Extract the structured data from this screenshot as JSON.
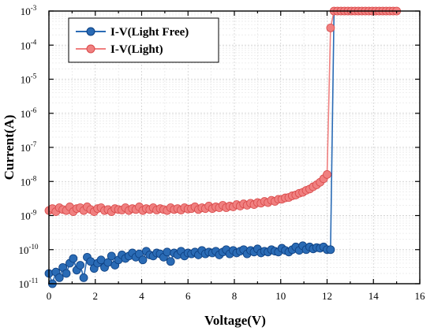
{
  "chart_data": {
    "type": "line",
    "title": "",
    "xlabel": "Voltage(V)",
    "ylabel": "Current(A)",
    "xlim": [
      0,
      16
    ],
    "ylim": [
      1e-11,
      0.001
    ],
    "yscale": "log",
    "grid": true,
    "legend_position": "top-left",
    "x_ticks": [
      "0",
      "2",
      "4",
      "6",
      "8",
      "10",
      "12",
      "14",
      "16"
    ],
    "y_ticks": [
      {
        "base": "10",
        "exp": "-11",
        "value": 1e-11
      },
      {
        "base": "10",
        "exp": "-10",
        "value": 1e-10
      },
      {
        "base": "10",
        "exp": "-9",
        "value": 1e-09
      },
      {
        "base": "10",
        "exp": "-8",
        "value": 1e-08
      },
      {
        "base": "10",
        "exp": "-7",
        "value": 1e-07
      },
      {
        "base": "10",
        "exp": "-6",
        "value": 1e-06
      },
      {
        "base": "10",
        "exp": "-5",
        "value": 1e-05
      },
      {
        "base": "10",
        "exp": "-4",
        "value": 0.0001
      },
      {
        "base": "10",
        "exp": "-3",
        "value": 0.001
      }
    ],
    "series": [
      {
        "name": "I-V(Light Free)",
        "color": "#2a6bb5",
        "edge_color": "#0d3f80",
        "x": [
          0.0,
          0.15,
          0.3,
          0.45,
          0.6,
          0.75,
          0.9,
          1.05,
          1.2,
          1.35,
          1.5,
          1.65,
          1.8,
          1.95,
          2.1,
          2.25,
          2.4,
          2.55,
          2.7,
          2.85,
          3.0,
          3.15,
          3.3,
          3.45,
          3.6,
          3.75,
          3.9,
          4.05,
          4.2,
          4.35,
          4.5,
          4.65,
          4.8,
          4.95,
          5.1,
          5.25,
          5.4,
          5.55,
          5.7,
          5.85,
          6.0,
          6.15,
          6.3,
          6.45,
          6.6,
          6.75,
          6.9,
          7.05,
          7.2,
          7.35,
          7.5,
          7.65,
          7.8,
          7.95,
          8.1,
          8.25,
          8.4,
          8.55,
          8.7,
          8.85,
          9.0,
          9.15,
          9.3,
          9.45,
          9.6,
          9.75,
          9.9,
          10.05,
          10.2,
          10.35,
          10.5,
          10.65,
          10.8,
          10.95,
          11.1,
          11.25,
          11.4,
          11.55,
          11.7,
          11.85,
          12.0,
          12.15,
          12.3,
          12.45,
          12.6,
          12.75,
          12.9,
          13.05,
          13.2,
          13.35,
          13.5,
          13.65,
          13.8,
          13.95,
          14.1,
          14.25,
          14.4,
          14.55,
          14.7,
          14.85,
          15.0
        ],
        "y": [
          2e-11,
          1e-11,
          2.2e-11,
          1.5e-11,
          3e-11,
          2e-11,
          4e-11,
          5.5e-11,
          2.5e-11,
          3.5e-11,
          1.5e-11,
          6e-11,
          4.5e-11,
          2.8e-11,
          4e-11,
          5e-11,
          3e-11,
          4.2e-11,
          6.5e-11,
          3.5e-11,
          5e-11,
          7e-11,
          5.5e-11,
          6.5e-11,
          8e-11,
          6e-11,
          7.5e-11,
          5e-11,
          9e-11,
          7e-11,
          6.5e-11,
          8e-11,
          7.5e-11,
          6e-11,
          8.5e-11,
          4.5e-11,
          8e-11,
          7e-11,
          9e-11,
          6.5e-11,
          8e-11,
          7.5e-11,
          8.5e-11,
          7e-11,
          9.5e-11,
          7.5e-11,
          8.5e-11,
          8e-11,
          9e-11,
          7e-11,
          8.5e-11,
          1e-10,
          7.5e-11,
          9.5e-11,
          8e-11,
          9e-11,
          1e-10,
          7.5e-11,
          9.5e-11,
          8.5e-11,
          1.05e-10,
          8e-11,
          9e-11,
          8.5e-11,
          1e-10,
          9e-11,
          8.5e-11,
          1.1e-10,
          9.5e-11,
          8.5e-11,
          1e-10,
          1.2e-10,
          9.5e-11,
          1.3e-10,
          1e-10,
          1.2e-10,
          1.05e-10,
          1.15e-10,
          1.1e-10,
          1.2e-10,
          1e-10,
          1e-10,
          0.001,
          0.001,
          0.001,
          0.001,
          0.001,
          0.001,
          0.001,
          0.001,
          0.001,
          0.001,
          0.001,
          0.001,
          0.001,
          0.001,
          0.001,
          0.001,
          0.001,
          0.001,
          0.001
        ],
        "marker_count": 82
      },
      {
        "name": "I-V(Light)",
        "color": "#f08080",
        "edge_color": "#d94a4a",
        "x": [
          0.0,
          0.15,
          0.3,
          0.45,
          0.6,
          0.75,
          0.9,
          1.05,
          1.2,
          1.35,
          1.5,
          1.65,
          1.8,
          1.95,
          2.1,
          2.25,
          2.4,
          2.55,
          2.7,
          2.85,
          3.0,
          3.15,
          3.3,
          3.45,
          3.6,
          3.75,
          3.9,
          4.05,
          4.2,
          4.35,
          4.5,
          4.65,
          4.8,
          4.95,
          5.1,
          5.25,
          5.4,
          5.55,
          5.7,
          5.85,
          6.0,
          6.15,
          6.3,
          6.45,
          6.6,
          6.75,
          6.9,
          7.05,
          7.2,
          7.35,
          7.5,
          7.65,
          7.8,
          7.95,
          8.1,
          8.25,
          8.4,
          8.55,
          8.7,
          8.85,
          9.0,
          9.15,
          9.3,
          9.45,
          9.6,
          9.75,
          9.9,
          10.05,
          10.2,
          10.35,
          10.5,
          10.65,
          10.8,
          10.95,
          11.1,
          11.25,
          11.4,
          11.55,
          11.7,
          11.85,
          12.0,
          12.15,
          12.3,
          12.45,
          12.6,
          12.75,
          12.9,
          13.05,
          13.2,
          13.35,
          13.5,
          13.65,
          13.8,
          13.95,
          14.1,
          14.25,
          14.4,
          14.55,
          14.7,
          14.85,
          15.0
        ],
        "y": [
          1.4e-09,
          1.6e-09,
          1.3e-09,
          1.7e-09,
          1.5e-09,
          1.4e-09,
          1.8e-09,
          1.3e-09,
          1.6e-09,
          1.7e-09,
          1.4e-09,
          1.8e-09,
          1.5e-09,
          1.3e-09,
          1.6e-09,
          1.7e-09,
          1.4e-09,
          1.5e-09,
          1.3e-09,
          1.6e-09,
          1.5e-09,
          1.45e-09,
          1.7e-09,
          1.4e-09,
          1.6e-09,
          1.5e-09,
          1.8e-09,
          1.4e-09,
          1.6e-09,
          1.5e-09,
          1.7e-09,
          1.45e-09,
          1.6e-09,
          1.5e-09,
          1.4e-09,
          1.7e-09,
          1.5e-09,
          1.6e-09,
          1.45e-09,
          1.7e-09,
          1.55e-09,
          1.6e-09,
          1.8e-09,
          1.5e-09,
          1.7e-09,
          1.6e-09,
          1.9e-09,
          1.6e-09,
          1.8e-09,
          1.7e-09,
          2e-09,
          1.7e-09,
          1.9e-09,
          1.8e-09,
          2.1e-09,
          1.9e-09,
          2.2e-09,
          2e-09,
          2.3e-09,
          2.1e-09,
          2.4e-09,
          2.3e-09,
          2.6e-09,
          2.4e-09,
          2.8e-09,
          2.6e-09,
          3e-09,
          3e-09,
          3.3e-09,
          3.4e-09,
          3.8e-09,
          4e-09,
          4.5e-09,
          4.8e-09,
          5.5e-09,
          6e-09,
          7e-09,
          8e-09,
          9.5e-09,
          1.2e-08,
          1.6e-08,
          0.00032,
          0.001,
          0.001,
          0.001,
          0.001,
          0.001,
          0.001,
          0.001,
          0.001,
          0.001,
          0.001,
          0.001,
          0.001,
          0.001,
          0.001,
          0.001,
          0.001,
          0.001,
          0.001,
          0.001
        ]
      }
    ]
  }
}
